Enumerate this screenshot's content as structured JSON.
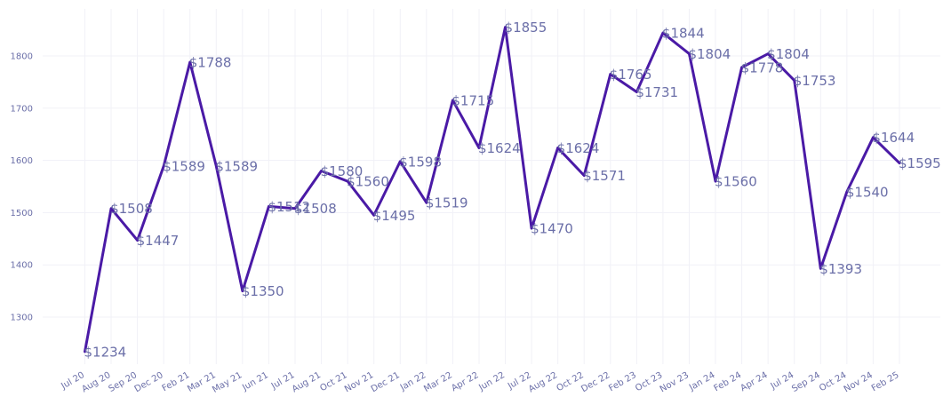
{
  "chart_data": {
    "type": "line",
    "categories": [
      "Jul 20",
      "Aug 20",
      "Sep 20",
      "Dec 20",
      "Feb 21",
      "Mar 21",
      "May 21",
      "Jun 21",
      "Jul 21",
      "Aug 21",
      "Oct 21",
      "Nov 21",
      "Dec 21",
      "Jan 22",
      "Mar 22",
      "Apr 22",
      "Jun 22",
      "Jul 22",
      "Aug 22",
      "Oct 22",
      "Dec 22",
      "Feb 23",
      "Oct 23",
      "Nov 23",
      "Jan 24",
      "Feb 24",
      "Apr 24",
      "Jul 24",
      "Sep 24",
      "Oct 24",
      "Nov 24",
      "Feb 25"
    ],
    "series": [
      {
        "values": [
          1234,
          1508,
          1447,
          1589,
          1788,
          1589,
          1350,
          1512,
          1508,
          1580,
          1560,
          1495,
          1598,
          1519,
          1715,
          1624,
          1855,
          1470,
          1624,
          1571,
          1765,
          1731,
          1844,
          1804,
          1560,
          1778,
          1804,
          1753,
          1393,
          1540,
          1644,
          1595
        ],
        "labels": [
          "$1234",
          "$1508",
          "$1447",
          "$1589",
          "$1788",
          "$1589",
          "$1350",
          "$1512",
          "$1508",
          "$1580",
          "$1560",
          "$1495",
          "$1598",
          "$1519",
          "$1715",
          "$1624",
          "$1855",
          "$1470",
          "$1624",
          "$1571",
          "$1765",
          "$1731",
          "$1844",
          "$1804",
          "$1560",
          "$1778",
          "$1804",
          "$1753",
          "$1393",
          "$1540",
          "$1644",
          "$1595"
        ]
      }
    ],
    "y_ticks": [
      "1300",
      "1400",
      "1500",
      "1600",
      "1700",
      "1800"
    ],
    "ylim": [
      1210,
      1890
    ],
    "grid": true,
    "legend": "none",
    "title": "",
    "xlabel": "",
    "ylabel": ""
  },
  "colors": {
    "line": "#4a1aa6",
    "grid": "#f1f1f7",
    "tick_text": "#6b6fa8",
    "label_text": "#6b6fa8"
  }
}
